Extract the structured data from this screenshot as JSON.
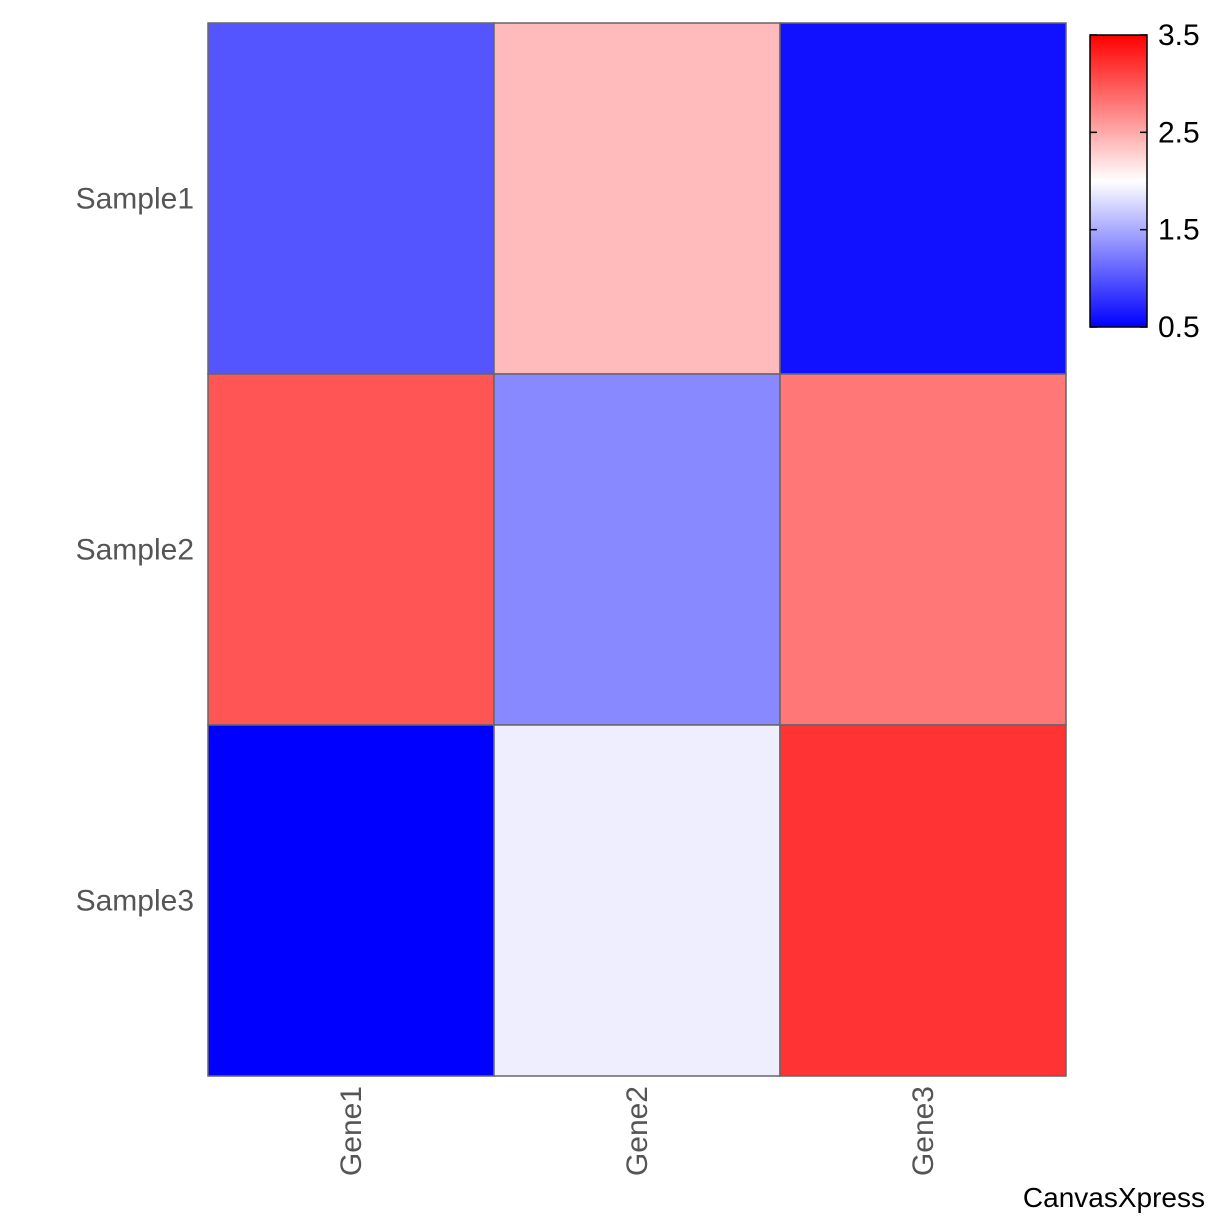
{
  "chart_data": {
    "type": "heatmap",
    "rows": [
      "Sample1",
      "Sample2",
      "Sample3"
    ],
    "columns": [
      "Gene1",
      "Gene2",
      "Gene3"
    ],
    "values": [
      [
        1.0,
        2.4,
        0.6
      ],
      [
        3.0,
        1.3,
        2.8
      ],
      [
        0.5,
        1.9,
        3.2
      ]
    ],
    "color_scale": {
      "min": 0.5,
      "mid": 2.0,
      "max": 3.5,
      "low_color": "#0000ff",
      "mid_color": "#ffffff",
      "high_color": "#ff0000",
      "ticks": [
        "3.5",
        "2.5",
        "1.5",
        "0.5"
      ]
    },
    "legend_position": "top-right",
    "grid": true
  },
  "watermark": "CanvasXpress"
}
